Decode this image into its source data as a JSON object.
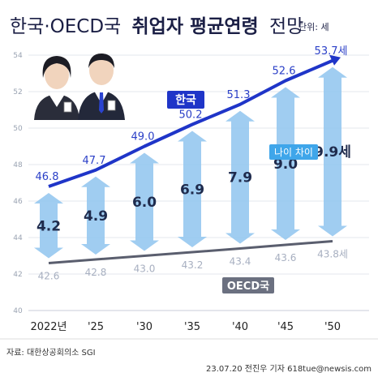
{
  "title": {
    "part1": "한국·OECD국",
    "part2": "취업자 평균연령",
    "part3": "전망",
    "unit": "단위: 세"
  },
  "colors": {
    "korea_line": "#1f35c8",
    "oecd_line": "#5a5e6e",
    "arrow": "#8fc4ee",
    "korea_badge": "#1f35c8",
    "oecd_badge": "#6b7080",
    "gap_badge": "#3fa6ea"
  },
  "legend": {
    "korea": "한국",
    "oecd": "OECD국",
    "gap": "나이 차이"
  },
  "footer": {
    "source": "자료: 대한상공회의소 SGI",
    "credit": "23.07.20 전진우 기자 618tue@newsis.com"
  },
  "chart_data": {
    "type": "line",
    "title": "한국·OECD국 취업자 평균연령 전망",
    "categories": [
      "2022년",
      "'25",
      "'30",
      "'35",
      "'40",
      "'45",
      "'50"
    ],
    "ylim": [
      40,
      54
    ],
    "yticks": [
      40,
      42,
      44,
      46,
      48,
      50,
      52,
      54
    ],
    "series": [
      {
        "name": "한국",
        "values": [
          46.8,
          47.7,
          49.0,
          50.2,
          51.3,
          52.6,
          53.7
        ],
        "labels": [
          "46.8",
          "47.7",
          "49.0",
          "50.2",
          "51.3",
          "52.6",
          "53.7세"
        ]
      },
      {
        "name": "OECD국",
        "values": [
          42.6,
          42.8,
          43.0,
          43.2,
          43.4,
          43.6,
          43.8
        ],
        "labels": [
          "42.6",
          "42.8",
          "43.0",
          "43.2",
          "43.4",
          "43.6",
          "43.8세"
        ]
      }
    ],
    "gap": {
      "name": "나이 차이",
      "values": [
        4.2,
        4.9,
        6.0,
        6.9,
        7.9,
        9.0,
        9.9
      ],
      "labels": [
        "4.2",
        "4.9",
        "6.0",
        "6.9",
        "7.9",
        "9.0",
        "9.9세"
      ]
    }
  }
}
